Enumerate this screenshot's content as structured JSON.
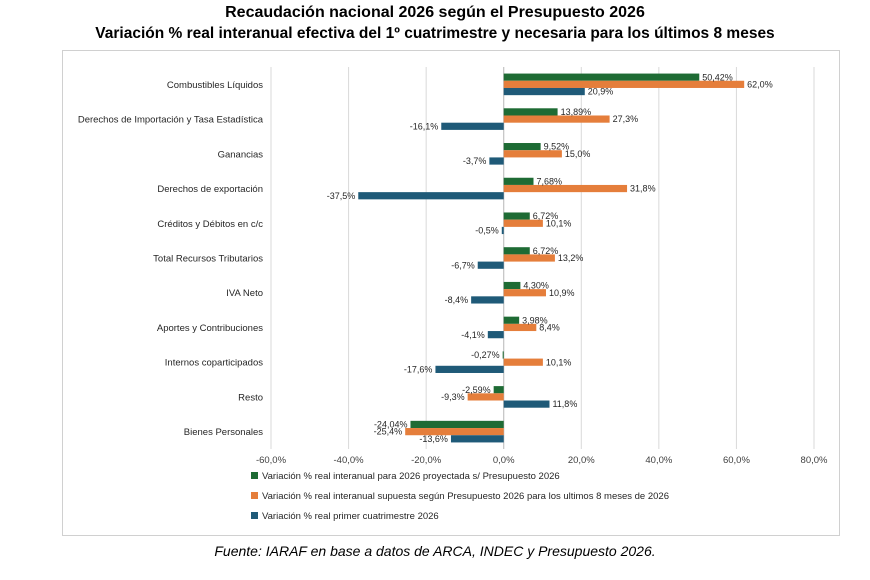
{
  "title": "Recaudación nacional 2026 según el Presupuesto 2026",
  "subtitle": "Variación % real interanual efectiva del 1º cuatrimestre y necesaria para los últimos 8 meses",
  "source": "Fuente: IARAF en base a datos de ARCA, INDEC y Presupuesto 2026.",
  "chart_data": {
    "type": "bar",
    "orientation": "horizontal",
    "categories": [
      "Combustibles Líquidos",
      "Derechos de Importación y Tasa Estadística",
      "Ganancias",
      "Derechos de exportación",
      "Créditos y Débitos en c/c",
      "Total Recursos Tributarios",
      "IVA Neto",
      "Aportes y Contribuciones",
      "Internos coparticipados",
      "Resto",
      "Bienes Personales"
    ],
    "series": [
      {
        "name": "Variación % real interanual para 2026 proyectada s/ Presupuesto 2026",
        "color": "#1e6b34",
        "values": [
          50.42,
          13.89,
          9.52,
          7.68,
          6.72,
          6.72,
          4.3,
          3.98,
          -0.27,
          -2.59,
          -24.04
        ],
        "labels": [
          "50,42%",
          "13,89%",
          "9,52%",
          "7,68%",
          "6,72%",
          "6,72%",
          "4,30%",
          "3,98%",
          "-0,27%",
          "-2,59%",
          "-24,04%"
        ]
      },
      {
        "name": "Variación % real interanual supuesta según Presupuesto 2026 para los ultimos 8 meses de 2026",
        "color": "#e57e3b",
        "values": [
          62.0,
          27.3,
          15.0,
          31.8,
          10.1,
          13.2,
          10.9,
          8.4,
          10.1,
          -9.3,
          -25.4
        ],
        "labels": [
          "62,0%",
          "27,3%",
          "15,0%",
          "31,8%",
          "10,1%",
          "13,2%",
          "10,9%",
          "8,4%",
          "10,1%",
          "-9,3%",
          "-25,4%"
        ]
      },
      {
        "name": "Variación % real primer cuatrimestre 2026",
        "color": "#1f5a78",
        "values": [
          20.9,
          -16.1,
          -3.7,
          -37.5,
          -0.5,
          -6.7,
          -8.4,
          -4.1,
          -17.6,
          11.8,
          -13.6
        ],
        "labels": [
          "20,9%",
          "-16,1%",
          "-3,7%",
          "-37,5%",
          "-0,5%",
          "-6,7%",
          "-8,4%",
          "-4,1%",
          "-17,6%",
          "11,8%",
          "-13,6%"
        ]
      }
    ],
    "xlim": [
      -60,
      80
    ],
    "xticks": [
      -60,
      -40,
      -20,
      0,
      20,
      40,
      60,
      80
    ],
    "xtick_labels": [
      "-60,0%",
      "-40,0%",
      "-20,0%",
      "0,0%",
      "20,0%",
      "40,0%",
      "60,0%",
      "80,0%"
    ],
    "grid": true,
    "legend": "bottom"
  }
}
